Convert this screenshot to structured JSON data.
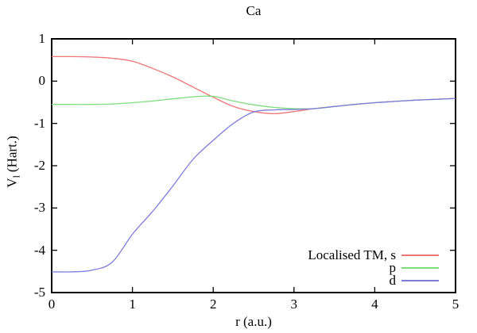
{
  "page": {
    "background": "#ffffff",
    "border_color": "#000000"
  },
  "chart_data": {
    "type": "line",
    "title": "Ca",
    "xlabel": "r (a.u.)",
    "ylabel": "V_l (Hart.)",
    "ylabel_parts": {
      "base": "V",
      "sub": "l",
      "unit": "(Hart.)"
    },
    "xlim": [
      0,
      5
    ],
    "ylim": [
      -5,
      1
    ],
    "xticks": [
      0,
      1,
      2,
      3,
      4,
      5
    ],
    "yticks": [
      1,
      0,
      -1,
      -2,
      -3,
      -4,
      -5
    ],
    "grid": false,
    "legend_position": "inside-bottom-right",
    "x": [
      0,
      0.25,
      0.5,
      0.75,
      1,
      1.25,
      1.5,
      1.75,
      2,
      2.25,
      2.5,
      2.75,
      3,
      3.25,
      3.5,
      3.75,
      4,
      4.25,
      4.5,
      4.75,
      5
    ],
    "series": [
      {
        "name": "Localised TM, s",
        "color": "#ee7575",
        "values": [
          0.58,
          0.58,
          0.57,
          0.54,
          0.47,
          0.3,
          0.1,
          -0.14,
          -0.38,
          -0.6,
          -0.72,
          -0.77,
          -0.72,
          -0.65,
          -0.6,
          -0.55,
          -0.51,
          -0.48,
          -0.45,
          -0.43,
          -0.41
        ]
      },
      {
        "name": "p",
        "color": "#7cdd7c",
        "values": [
          -0.55,
          -0.55,
          -0.55,
          -0.54,
          -0.51,
          -0.47,
          -0.42,
          -0.37,
          -0.36,
          -0.47,
          -0.56,
          -0.62,
          -0.65,
          -0.65,
          -0.6,
          -0.55,
          -0.51,
          -0.48,
          -0.45,
          -0.43,
          -0.41
        ]
      },
      {
        "name": "d",
        "color": "#7c7cdd",
        "values": [
          -4.51,
          -4.51,
          -4.47,
          -4.28,
          -3.62,
          -3.08,
          -2.48,
          -1.85,
          -1.4,
          -1.0,
          -0.73,
          -0.68,
          -0.67,
          -0.65,
          -0.6,
          -0.55,
          -0.51,
          -0.48,
          -0.45,
          -0.43,
          -0.41
        ]
      }
    ]
  }
}
